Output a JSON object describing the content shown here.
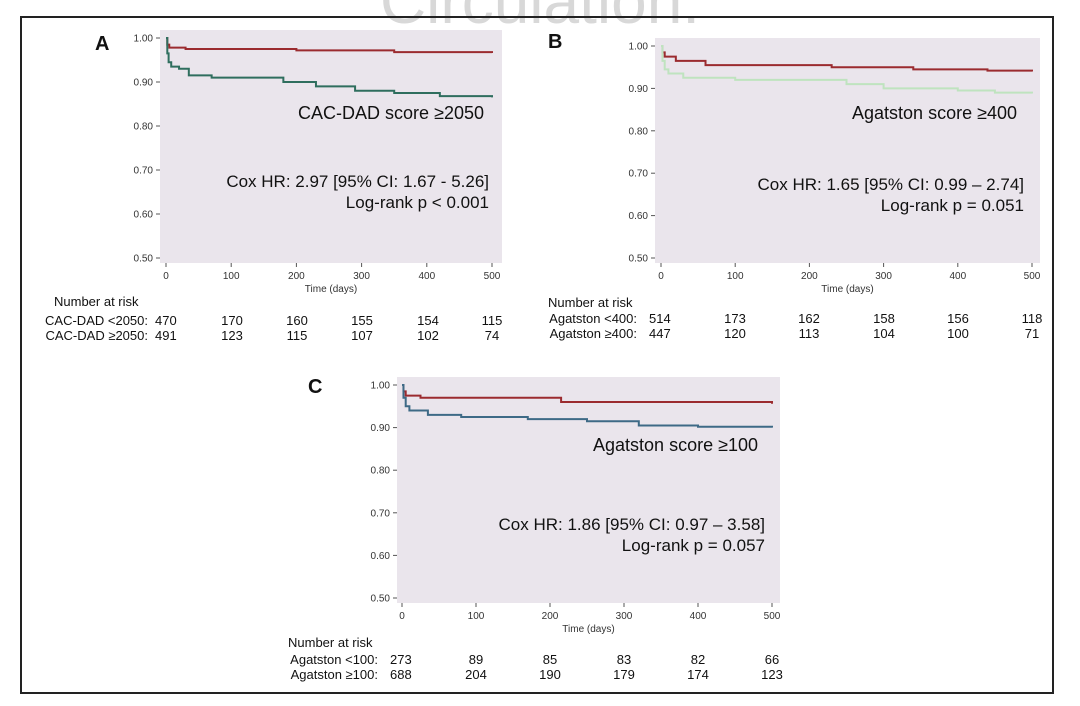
{
  "watermark": "Circulation:",
  "chart_data": [
    {
      "type": "line",
      "panel": "A",
      "subtitle": "CAC-DAD score ≥2050",
      "stat_line1": "Cox HR: 2.97 [95% CI: 1.67 - 5.26]",
      "stat_line2": "Log-rank p < 0.001",
      "xlabel": "Time (days)",
      "xlim": [
        0,
        500
      ],
      "ylim": [
        0.5,
        1.0
      ],
      "xticks": [
        "0",
        "100",
        "200",
        "300",
        "400",
        "500"
      ],
      "yticks": [
        "0.50",
        "0.60",
        "0.70",
        "0.80",
        "0.90",
        "1.00"
      ],
      "series": [
        {
          "name": "CAC-DAD <2050",
          "color": "#9b2b2f",
          "points": [
            [
              0,
              1.0
            ],
            [
              2,
              0.985
            ],
            [
              5,
              0.978
            ],
            [
              30,
              0.975
            ],
            [
              200,
              0.972
            ],
            [
              350,
              0.968
            ],
            [
              500,
              0.966
            ]
          ]
        },
        {
          "name": "CAC-DAD ≥2050",
          "color": "#2f6e5e",
          "points": [
            [
              0,
              1.0
            ],
            [
              2,
              0.965
            ],
            [
              4,
              0.945
            ],
            [
              8,
              0.935
            ],
            [
              20,
              0.93
            ],
            [
              35,
              0.915
            ],
            [
              70,
              0.91
            ],
            [
              180,
              0.9
            ],
            [
              230,
              0.89
            ],
            [
              290,
              0.88
            ],
            [
              350,
              0.875
            ],
            [
              420,
              0.868
            ],
            [
              500,
              0.865
            ]
          ]
        }
      ],
      "risk_table": {
        "header": "Number at risk",
        "rows": [
          {
            "label": "CAC-DAD <2050:",
            "values": [
              "470",
              "170",
              "160",
              "155",
              "154",
              "115"
            ]
          },
          {
            "label": "CAC-DAD ≥2050:",
            "values": [
              "491",
              "123",
              "115",
              "107",
              "102",
              "74"
            ]
          }
        ]
      }
    },
    {
      "type": "line",
      "panel": "B",
      "subtitle": "Agatston score ≥400",
      "stat_line1": "Cox HR: 1.65 [95% CI: 0.99 – 2.74]",
      "stat_line2": "Log-rank p = 0.051",
      "xlabel": "Time (days)",
      "xlim": [
        0,
        500
      ],
      "ylim": [
        0.5,
        1.0
      ],
      "xticks": [
        "0",
        "100",
        "200",
        "300",
        "400",
        "500"
      ],
      "yticks": [
        "0.50",
        "0.60",
        "0.70",
        "0.80",
        "0.90",
        "1.00"
      ],
      "series": [
        {
          "name": "Agatston <400",
          "color": "#9b2b2f",
          "points": [
            [
              0,
              1.0
            ],
            [
              2,
              0.985
            ],
            [
              5,
              0.975
            ],
            [
              20,
              0.965
            ],
            [
              60,
              0.955
            ],
            [
              230,
              0.95
            ],
            [
              340,
              0.945
            ],
            [
              440,
              0.942
            ],
            [
              500,
              0.94
            ]
          ]
        },
        {
          "name": "Agatston ≥400",
          "color": "#bfe3bf",
          "points": [
            [
              0,
              1.0
            ],
            [
              2,
              0.965
            ],
            [
              5,
              0.945
            ],
            [
              10,
              0.935
            ],
            [
              30,
              0.925
            ],
            [
              100,
              0.92
            ],
            [
              250,
              0.91
            ],
            [
              300,
              0.9
            ],
            [
              400,
              0.895
            ],
            [
              450,
              0.89
            ],
            [
              500,
              0.888
            ]
          ]
        }
      ],
      "risk_table": {
        "header": "Number at risk",
        "rows": [
          {
            "label": "Agatston <400:",
            "values": [
              "514",
              "173",
              "162",
              "158",
              "156",
              "118"
            ]
          },
          {
            "label": "Agatston ≥400:",
            "values": [
              "447",
              "120",
              "113",
              "104",
              "100",
              "71"
            ]
          }
        ]
      }
    },
    {
      "type": "line",
      "panel": "C",
      "subtitle": "Agatston score ≥100",
      "stat_line1": "Cox HR: 1.86 [95% CI: 0.97 – 3.58]",
      "stat_line2": "Log-rank p = 0.057",
      "xlabel": "Time (days)",
      "xlim": [
        0,
        500
      ],
      "ylim": [
        0.5,
        1.0
      ],
      "xticks": [
        "0",
        "100",
        "200",
        "300",
        "400",
        "500"
      ],
      "yticks": [
        "0.50",
        "0.60",
        "0.70",
        "0.80",
        "0.90",
        "1.00"
      ],
      "series": [
        {
          "name": "Agatston <100",
          "color": "#9b2b2f",
          "points": [
            [
              0,
              1.0
            ],
            [
              2,
              0.985
            ],
            [
              5,
              0.975
            ],
            [
              25,
              0.97
            ],
            [
              215,
              0.96
            ],
            [
              500,
              0.956
            ]
          ]
        },
        {
          "name": "Agatston ≥100",
          "color": "#3e6a86",
          "points": [
            [
              0,
              1.0
            ],
            [
              2,
              0.97
            ],
            [
              5,
              0.95
            ],
            [
              10,
              0.94
            ],
            [
              35,
              0.93
            ],
            [
              80,
              0.925
            ],
            [
              170,
              0.92
            ],
            [
              250,
              0.915
            ],
            [
              320,
              0.905
            ],
            [
              400,
              0.902
            ],
            [
              500,
              0.9
            ]
          ]
        }
      ],
      "risk_table": {
        "header": "Number at risk",
        "rows": [
          {
            "label": "Agatston <100:",
            "values": [
              "273",
              "89",
              "85",
              "83",
              "82",
              "66"
            ]
          },
          {
            "label": "Agatston ≥100:",
            "values": [
              "688",
              "204",
              "190",
              "179",
              "174",
              "123"
            ]
          }
        ]
      }
    }
  ]
}
